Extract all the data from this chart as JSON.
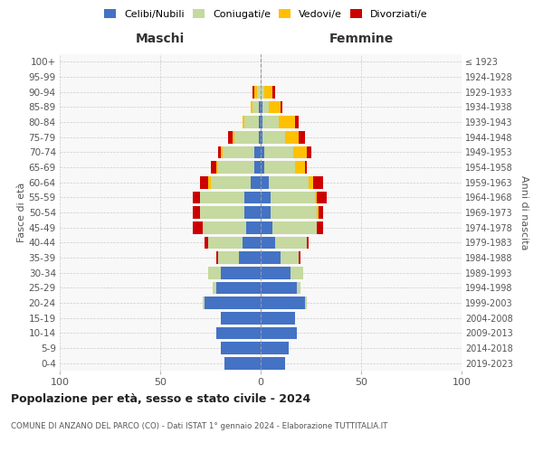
{
  "age_groups": [
    "0-4",
    "5-9",
    "10-14",
    "15-19",
    "20-24",
    "25-29",
    "30-34",
    "35-39",
    "40-44",
    "45-49",
    "50-54",
    "55-59",
    "60-64",
    "65-69",
    "70-74",
    "75-79",
    "80-84",
    "85-89",
    "90-94",
    "95-99",
    "100+"
  ],
  "birth_years": [
    "2019-2023",
    "2014-2018",
    "2009-2013",
    "2004-2008",
    "1999-2003",
    "1994-1998",
    "1989-1993",
    "1984-1988",
    "1979-1983",
    "1974-1978",
    "1969-1973",
    "1964-1968",
    "1959-1963",
    "1954-1958",
    "1949-1953",
    "1944-1948",
    "1939-1943",
    "1934-1938",
    "1929-1933",
    "1924-1928",
    "≤ 1923"
  ],
  "male_celibi": [
    18,
    20,
    22,
    20,
    28,
    22,
    20,
    11,
    9,
    7,
    8,
    8,
    5,
    3,
    3,
    1,
    1,
    1,
    0,
    0,
    0
  ],
  "male_coniugati": [
    0,
    0,
    0,
    0,
    1,
    2,
    6,
    10,
    17,
    22,
    22,
    22,
    20,
    18,
    16,
    12,
    7,
    3,
    2,
    0,
    0
  ],
  "male_vedovi": [
    0,
    0,
    0,
    0,
    0,
    0,
    0,
    0,
    0,
    0,
    0,
    0,
    1,
    1,
    1,
    1,
    1,
    1,
    1,
    0,
    0
  ],
  "male_divorziati": [
    0,
    0,
    0,
    0,
    0,
    0,
    0,
    1,
    2,
    5,
    4,
    4,
    4,
    3,
    1,
    2,
    0,
    0,
    1,
    0,
    0
  ],
  "female_celibi": [
    12,
    14,
    18,
    17,
    22,
    18,
    15,
    10,
    7,
    6,
    5,
    5,
    4,
    2,
    2,
    1,
    1,
    1,
    0,
    0,
    0
  ],
  "female_coniugati": [
    0,
    0,
    0,
    0,
    1,
    2,
    6,
    9,
    16,
    22,
    23,
    22,
    20,
    15,
    14,
    11,
    8,
    3,
    2,
    0,
    0
  ],
  "female_vedovi": [
    0,
    0,
    0,
    0,
    0,
    0,
    0,
    0,
    0,
    0,
    1,
    1,
    2,
    5,
    7,
    7,
    8,
    6,
    4,
    0,
    0
  ],
  "female_divorziati": [
    0,
    0,
    0,
    0,
    0,
    0,
    0,
    1,
    1,
    3,
    2,
    5,
    5,
    1,
    2,
    3,
    2,
    1,
    1,
    0,
    0
  ],
  "color_celibi": "#4472c4",
  "color_coniugati": "#c5d9a0",
  "color_vedovi": "#ffc000",
  "color_divorziati": "#cc0000",
  "xlim": 100,
  "title": "Popolazione per età, sesso e stato civile - 2024",
  "subtitle": "COMUNE DI ANZANO DEL PARCO (CO) - Dati ISTAT 1° gennaio 2024 - Elaborazione TUTTITALIA.IT",
  "ylabel_left": "Fasce di età",
  "ylabel_right": "Anni di nascita",
  "xlabel_left": "Maschi",
  "xlabel_right": "Femmine",
  "bg_color": "#f8f8f8"
}
